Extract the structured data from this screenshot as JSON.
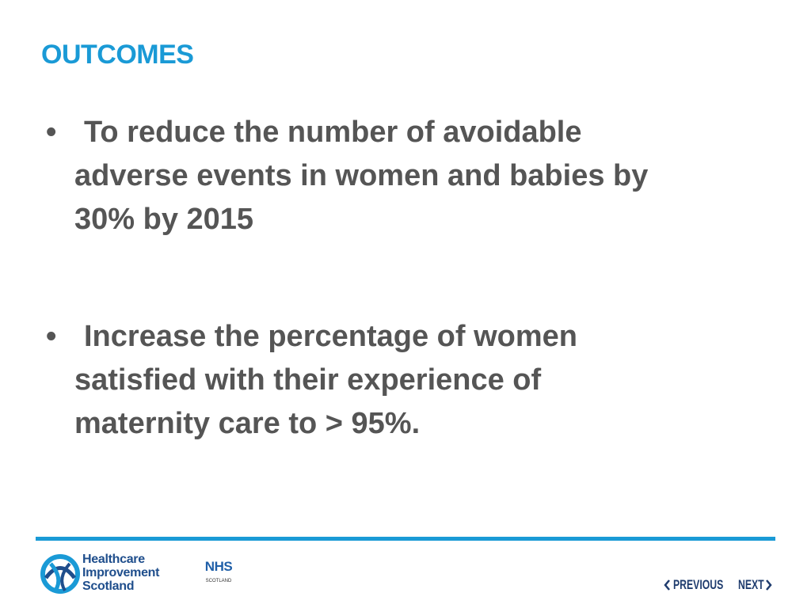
{
  "header": {
    "title": "OUTCOMES"
  },
  "bullets": [
    {
      "lines": [
        "To reduce the number of avoidable",
        "adverse events in women and babies by",
        "30% by 2015"
      ]
    },
    {
      "lines": [
        "Increase the percentage of women",
        "satisfied with their experience of",
        "maternity care to > 95%."
      ]
    }
  ],
  "footer": {
    "logo": {
      "lines": [
        "Healthcare",
        "Improvement",
        "Scotland"
      ]
    },
    "nhs": {
      "name": "NHS",
      "region": "SCOTLAND"
    },
    "nav": {
      "previous": "PREVIOUS",
      "next": "NEXT"
    }
  }
}
